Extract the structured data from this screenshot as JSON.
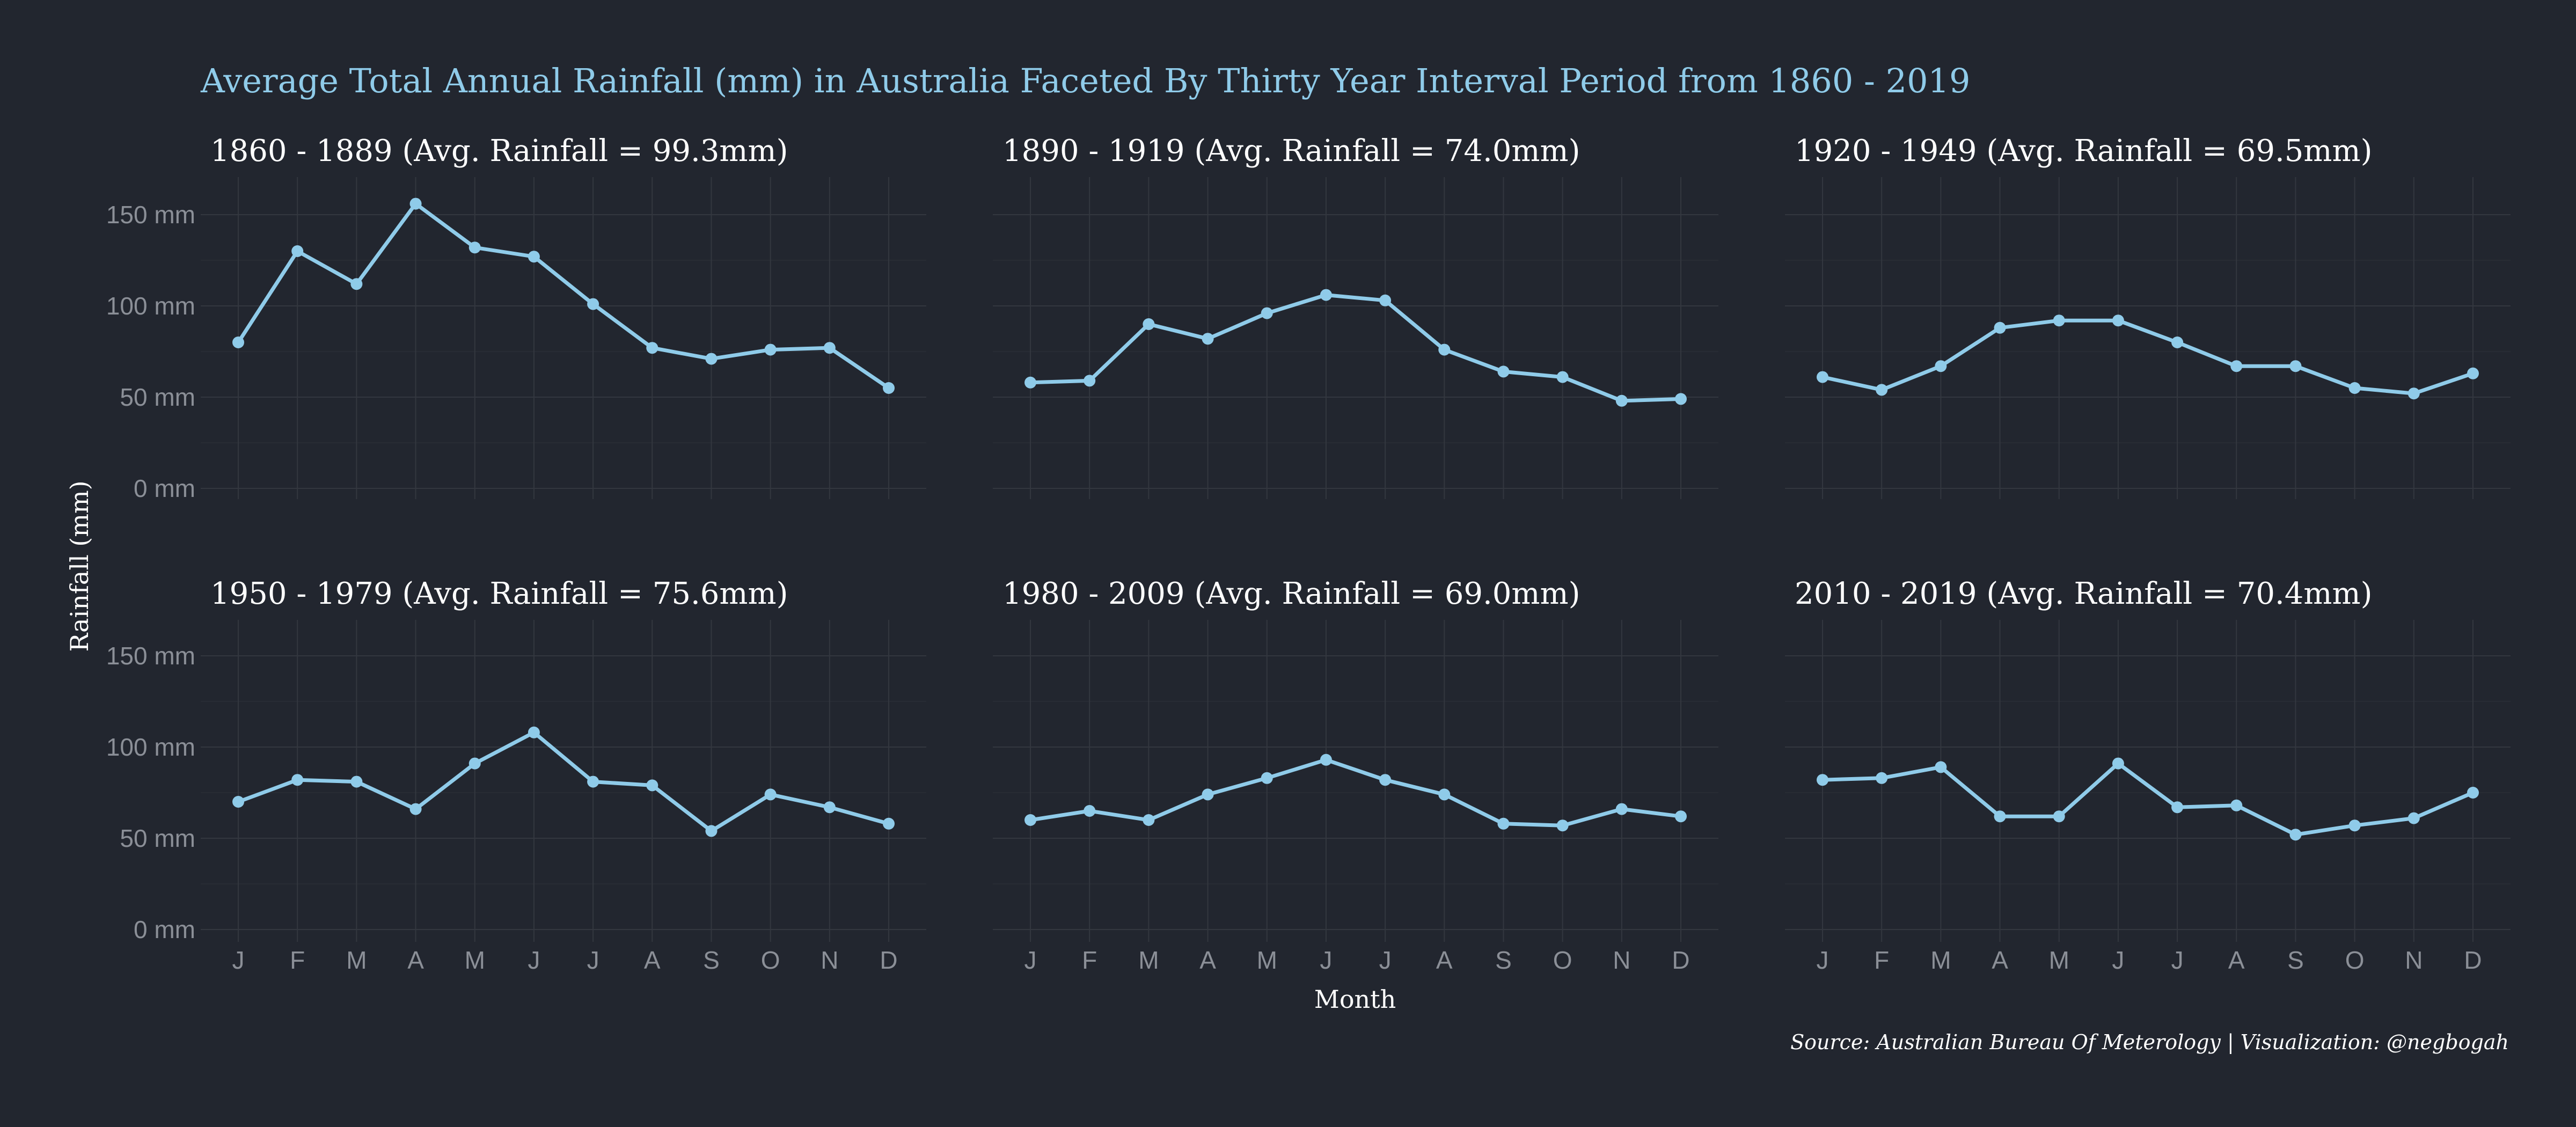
{
  "chart_data": {
    "type": "line",
    "title": "Average Total Annual Rainfall (mm) in Australia Faceted By Thirty Year Interval Period from 1860 - 2019",
    "xlabel": "Month",
    "ylabel": "Rainfall (mm)",
    "ylim": [
      0,
      160
    ],
    "yticks": [
      0,
      50,
      100,
      150
    ],
    "ytick_labels": [
      "0 mm",
      "50 mm",
      "100 mm",
      "150 mm"
    ],
    "categories": [
      "J",
      "F",
      "M",
      "A",
      "M",
      "J",
      "J",
      "A",
      "S",
      "O",
      "N",
      "D"
    ],
    "grid": true,
    "color": "#8fcbe9",
    "caption": "Source: Australian Bureau Of Meterology | Visualization: @negbogah",
    "facets": [
      {
        "title": "1860 - 1889 (Avg. Rainfall = 99.3mm)",
        "values": [
          80,
          130,
          112,
          156,
          132,
          127,
          101,
          77,
          71,
          76,
          77,
          55
        ]
      },
      {
        "title": "1890 - 1919 (Avg. Rainfall = 74.0mm)",
        "values": [
          58,
          59,
          90,
          82,
          96,
          106,
          103,
          76,
          64,
          61,
          48,
          49
        ]
      },
      {
        "title": "1920 - 1949 (Avg. Rainfall = 69.5mm)",
        "values": [
          61,
          54,
          67,
          88,
          92,
          92,
          80,
          67,
          67,
          55,
          52,
          63
        ]
      },
      {
        "title": "1950 - 1979 (Avg. Rainfall = 75.6mm)",
        "values": [
          70,
          82,
          81,
          66,
          91,
          108,
          81,
          79,
          54,
          74,
          67,
          58
        ]
      },
      {
        "title": "1980 - 2009 (Avg. Rainfall = 69.0mm)",
        "values": [
          60,
          65,
          60,
          74,
          83,
          93,
          82,
          74,
          58,
          57,
          66,
          62
        ]
      },
      {
        "title": "2010 - 2019 (Avg. Rainfall = 70.4mm)",
        "values": [
          82,
          83,
          89,
          62,
          62,
          91,
          67,
          68,
          52,
          57,
          61,
          75
        ]
      }
    ]
  }
}
